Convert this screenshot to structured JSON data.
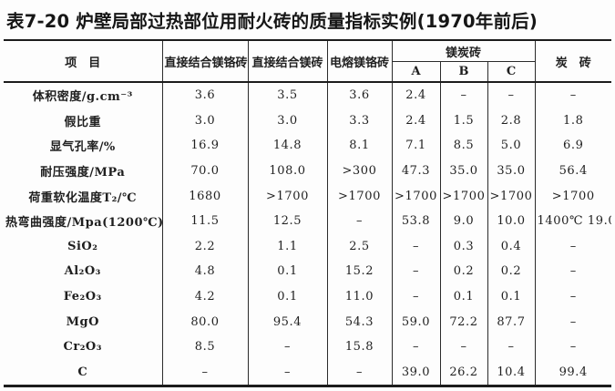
{
  "title": "表7-20 炉壁局部过热部位用耐火砖的质量指标实例(1970年前后)",
  "table": {
    "header": {
      "item_col": "项　目",
      "col1": "直接结合镁铬砖",
      "col2": "直接结合镁砖",
      "col3": "电熔镁铬砖",
      "group": "镁炭砖",
      "sub": [
        "A",
        "B",
        "C"
      ],
      "col_last": "炭　砖"
    },
    "rows": [
      {
        "label": "体积密度/g.cm⁻³",
        "values": [
          "3.6",
          "3.5",
          "3.6",
          "2.4",
          "–",
          "–",
          "–"
        ]
      },
      {
        "label": "假比重",
        "values": [
          "3.0",
          "3.0",
          "3.3",
          "2.4",
          "1.5",
          "2.8",
          "1.8"
        ]
      },
      {
        "label": "显气孔率/%",
        "values": [
          "16.9",
          "14.8",
          "8.1",
          "7.1",
          "8.5",
          "5.0",
          "6.9"
        ]
      },
      {
        "label": "耐压强度/MPa",
        "values": [
          "70.0",
          "108.0",
          ">300",
          "47.3",
          "35.0",
          "35.0",
          "56.4"
        ]
      },
      {
        "label": "荷重软化温度T₂/℃",
        "values": [
          "1680",
          ">1700",
          ">1700",
          ">1700",
          ">1700",
          ">1700",
          ">1700"
        ]
      },
      {
        "label": "热弯曲强度/Mpa(1200℃)",
        "values": [
          "11.5",
          "12.5",
          "–",
          "53.8",
          "9.0",
          "10.0",
          "1400℃ 19.0"
        ]
      },
      {
        "label": "SiO₂",
        "values": [
          "2.2",
          "1.1",
          "2.5",
          "–",
          "0.3",
          "0.4",
          "–"
        ]
      },
      {
        "label": "Al₂O₃",
        "values": [
          "4.8",
          "0.1",
          "15.2",
          "–",
          "0.2",
          "0.2",
          "–"
        ]
      },
      {
        "label": "Fe₂O₃",
        "values": [
          "4.2",
          "0.1",
          "11.0",
          "–",
          "0.1",
          "0.1",
          "–"
        ]
      },
      {
        "label": "MgO",
        "values": [
          "80.0",
          "95.4",
          "54.3",
          "59.0",
          "72.2",
          "87.7",
          "–"
        ]
      },
      {
        "label": "Cr₂O₃",
        "values": [
          "8.5",
          "–",
          "15.8",
          "–",
          "–",
          "–",
          "–"
        ]
      },
      {
        "label": "C",
        "values": [
          "–",
          "–",
          "–",
          "39.0",
          "26.2",
          "10.4",
          "99.4"
        ]
      }
    ]
  }
}
